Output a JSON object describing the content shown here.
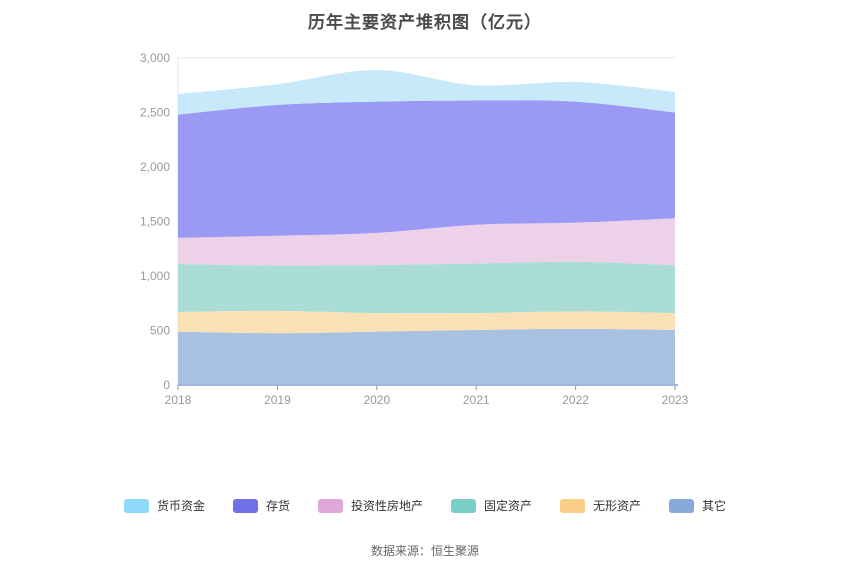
{
  "header": {
    "title": "历年主要资产堆积图（亿元）"
  },
  "footer": {
    "source": "数据来源：恒生聚源"
  },
  "chart_data": {
    "type": "area",
    "stacked": true,
    "smooth": true,
    "title": "历年主要资产堆积图（亿元）",
    "xlabel": "",
    "ylabel": "",
    "x": [
      "2018",
      "2019",
      "2020",
      "2021",
      "2022",
      "2023"
    ],
    "ylim": [
      0,
      3000
    ],
    "yticks": [
      0,
      500,
      1000,
      1500,
      2000,
      2500,
      3000
    ],
    "ytick_labels": [
      "0",
      "500",
      "1,000",
      "1,500",
      "2,000",
      "2,500",
      "3,000"
    ],
    "grid": true,
    "grid_color": "#e6e6e6",
    "axis_line_color": "#9fb6e2",
    "tick_color": "#999999",
    "label_color": "#999999",
    "legend_position": "bottom",
    "legend": [
      "货币资金",
      "存货",
      "投资性房地产",
      "固定资产",
      "无形资产",
      "其它"
    ],
    "series": [
      {
        "name": "其它",
        "color": "#88a8da",
        "fill": "#a9c1e0",
        "values": [
          490,
          475,
          490,
          505,
          515,
          505
        ]
      },
      {
        "name": "无形资产",
        "color": "#face87",
        "fill": "#fae1b5",
        "values": [
          180,
          205,
          170,
          155,
          160,
          155
        ]
      },
      {
        "name": "固定资产",
        "color": "#7bcfc5",
        "fill": "#aaddd6",
        "values": [
          440,
          415,
          440,
          455,
          455,
          440
        ]
      },
      {
        "name": "投资性房地产",
        "color": "#e0a8d8",
        "fill": "#ecd1e8",
        "values": [
          240,
          275,
          295,
          355,
          360,
          430
        ]
      },
      {
        "name": "存货",
        "color": "#7070e8",
        "fill": "#9a9af5",
        "values": [
          1130,
          1200,
          1205,
          1140,
          1110,
          970
        ]
      },
      {
        "name": "货币资金",
        "color": "#8ed8f8",
        "fill": "#c7e9fa",
        "values": [
          190,
          190,
          290,
          140,
          180,
          190
        ]
      }
    ]
  }
}
